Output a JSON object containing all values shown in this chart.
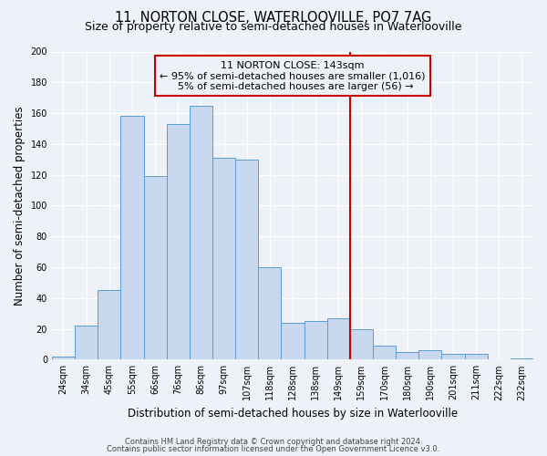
{
  "title": "11, NORTON CLOSE, WATERLOOVILLE, PO7 7AG",
  "subtitle": "Size of property relative to semi-detached houses in Waterlooville",
  "xlabel": "Distribution of semi-detached houses by size in Waterlooville",
  "ylabel": "Number of semi-detached properties",
  "footnote1": "Contains HM Land Registry data © Crown copyright and database right 2024.",
  "footnote2": "Contains public sector information licensed under the Open Government Licence v3.0.",
  "bar_labels": [
    "24sqm",
    "34sqm",
    "45sqm",
    "55sqm",
    "66sqm",
    "76sqm",
    "86sqm",
    "97sqm",
    "107sqm",
    "118sqm",
    "128sqm",
    "138sqm",
    "149sqm",
    "159sqm",
    "170sqm",
    "180sqm",
    "190sqm",
    "201sqm",
    "211sqm",
    "222sqm",
    "232sqm"
  ],
  "bar_values": [
    2,
    22,
    45,
    158,
    119,
    153,
    165,
    131,
    130,
    60,
    24,
    25,
    27,
    20,
    9,
    5,
    6,
    4,
    4,
    0,
    1
  ],
  "bar_color": "#c8d8ee",
  "bar_edge_color": "#5b9bd5",
  "vline_x": 12.5,
  "vline_color": "#cc0000",
  "ylim": [
    0,
    200
  ],
  "yticks": [
    0,
    20,
    40,
    60,
    80,
    100,
    120,
    140,
    160,
    180,
    200
  ],
  "annotation_title": "11 NORTON CLOSE: 143sqm",
  "annotation_line1": "← 95% of semi-detached houses are smaller (1,016)",
  "annotation_line2": "5% of semi-detached houses are larger (56) →",
  "bg_color": "#eef2f8",
  "grid_color": "#ffffff",
  "title_fontsize": 10.5,
  "subtitle_fontsize": 9,
  "axis_label_fontsize": 8.5,
  "tick_fontsize": 7,
  "annotation_fontsize": 8
}
